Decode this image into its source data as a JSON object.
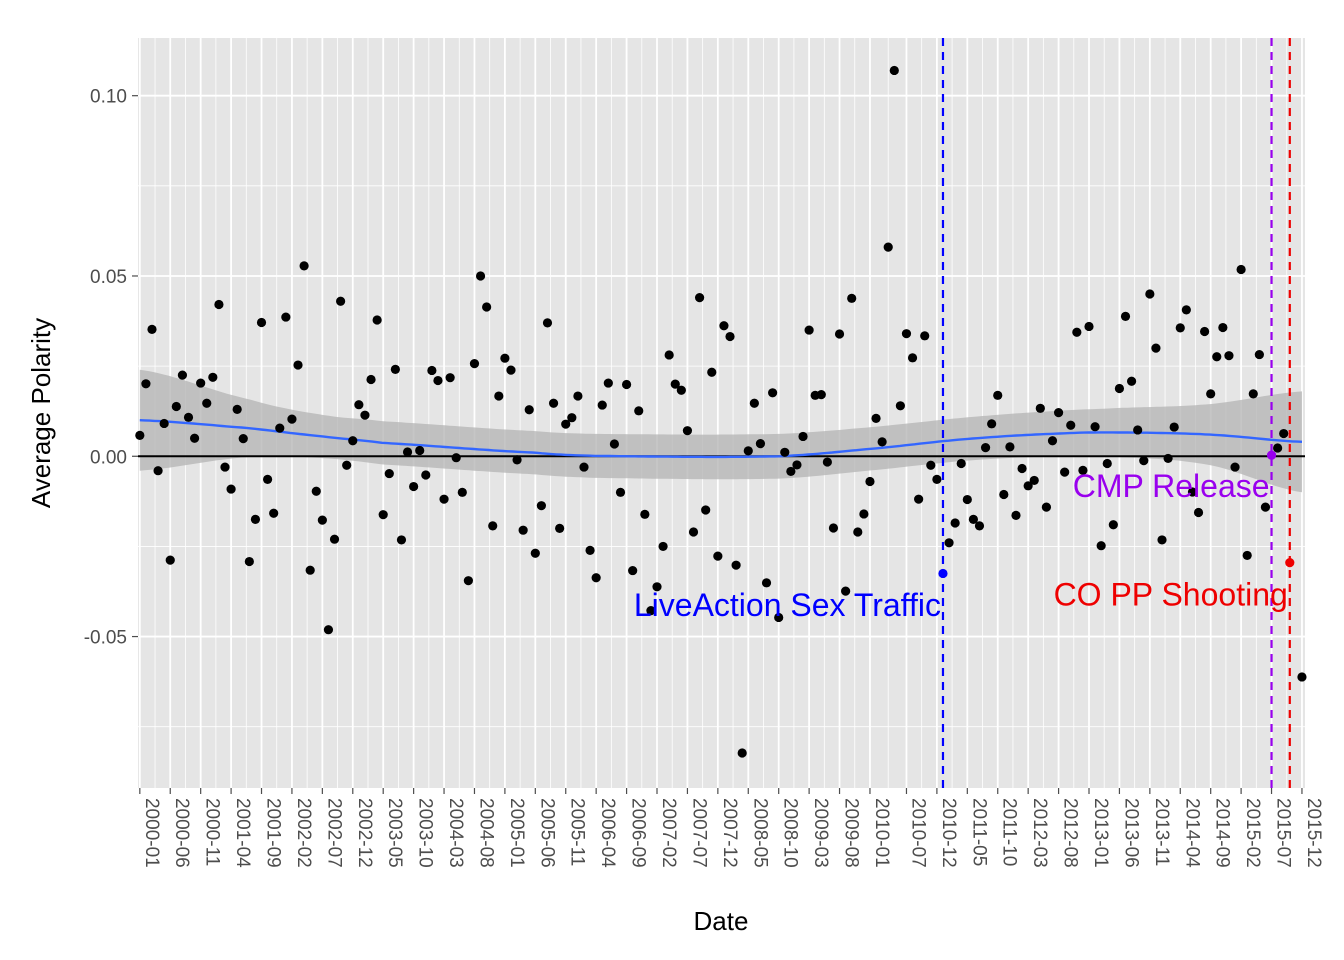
{
  "chart_data": {
    "type": "scatter",
    "title": "",
    "xlabel": "Date",
    "ylabel": "Average Polarity",
    "x_ticks": [
      "2000-01",
      "2000-06",
      "2000-11",
      "2001-04",
      "2001-09",
      "2002-02",
      "2002-07",
      "2002-12",
      "2003-05",
      "2003-10",
      "2004-03",
      "2004-08",
      "2005-01",
      "2005-06",
      "2005-11",
      "2006-04",
      "2006-09",
      "2007-02",
      "2007-07",
      "2007-12",
      "2008-05",
      "2008-10",
      "2009-03",
      "2009-08",
      "2010-01",
      "2010-07",
      "2010-12",
      "2011-05",
      "2011-10",
      "2012-03",
      "2012-08",
      "2013-01",
      "2013-06",
      "2013-11",
      "2014-04",
      "2014-09",
      "2015-02",
      "2015-07",
      "2015-12"
    ],
    "y_ticks": [
      "0.10",
      "0.05",
      "0.00",
      "-0.05"
    ],
    "y_tick_values": [
      0.1,
      0.05,
      0.0,
      -0.05
    ],
    "ylim": [
      -0.092,
      0.116
    ],
    "x_range_months": [
      -0.3,
      191.5
    ],
    "grid": true,
    "colors": {
      "panel": "#e5e5e5",
      "grid": "#ffffff",
      "points": "#000000",
      "smooth": "#3366ff",
      "ribbon": "#b3b3b3",
      "zero_line": "#000000"
    },
    "points": [
      {
        "x": "2000-01",
        "y": 0.0058
      },
      {
        "x": "2000-02",
        "y": 0.0201
      },
      {
        "x": "2000-03",
        "y": 0.0352
      },
      {
        "x": "2000-04",
        "y": -0.004
      },
      {
        "x": "2000-05",
        "y": 0.0091
      },
      {
        "x": "2000-06",
        "y": -0.0288
      },
      {
        "x": "2000-07",
        "y": 0.0138
      },
      {
        "x": "2000-08",
        "y": 0.0225
      },
      {
        "x": "2000-09",
        "y": 0.0108
      },
      {
        "x": "2000-10",
        "y": 0.005
      },
      {
        "x": "2000-11",
        "y": 0.0203
      },
      {
        "x": "2000-12",
        "y": 0.0147
      },
      {
        "x": "2001-01",
        "y": 0.0219
      },
      {
        "x": "2001-02",
        "y": 0.0421
      },
      {
        "x": "2001-03",
        "y": -0.003
      },
      {
        "x": "2001-04",
        "y": -0.0091
      },
      {
        "x": "2001-05",
        "y": 0.013
      },
      {
        "x": "2001-06",
        "y": 0.0049
      },
      {
        "x": "2001-07",
        "y": -0.0292
      },
      {
        "x": "2001-08",
        "y": -0.0175
      },
      {
        "x": "2001-09",
        "y": 0.0371
      },
      {
        "x": "2001-10",
        "y": -0.0064
      },
      {
        "x": "2001-11",
        "y": -0.0158
      },
      {
        "x": "2001-12",
        "y": 0.0078
      },
      {
        "x": "2002-01",
        "y": 0.0386
      },
      {
        "x": "2002-02",
        "y": 0.0103
      },
      {
        "x": "2002-03",
        "y": 0.0253
      },
      {
        "x": "2002-04",
        "y": 0.0528
      },
      {
        "x": "2002-05",
        "y": -0.0316
      },
      {
        "x": "2002-06",
        "y": -0.0097
      },
      {
        "x": "2002-07",
        "y": -0.0177
      },
      {
        "x": "2002-08",
        "y": -0.0481
      },
      {
        "x": "2002-09",
        "y": -0.023
      },
      {
        "x": "2002-10",
        "y": 0.043
      },
      {
        "x": "2002-11",
        "y": -0.0025
      },
      {
        "x": "2002-12",
        "y": 0.0043
      },
      {
        "x": "2003-01",
        "y": 0.0143
      },
      {
        "x": "2003-02",
        "y": 0.0114
      },
      {
        "x": "2003-03",
        "y": 0.0213
      },
      {
        "x": "2003-04",
        "y": 0.0378
      },
      {
        "x": "2003-05",
        "y": -0.0162
      },
      {
        "x": "2003-06",
        "y": -0.0048
      },
      {
        "x": "2003-07",
        "y": 0.0241
      },
      {
        "x": "2003-08",
        "y": -0.0232
      },
      {
        "x": "2003-09",
        "y": 0.0012
      },
      {
        "x": "2003-10",
        "y": -0.0084
      },
      {
        "x": "2003-11",
        "y": 0.0016
      },
      {
        "x": "2003-12",
        "y": -0.0052
      },
      {
        "x": "2004-01",
        "y": 0.0238
      },
      {
        "x": "2004-02",
        "y": 0.021
      },
      {
        "x": "2004-03",
        "y": -0.0119
      },
      {
        "x": "2004-04",
        "y": 0.0218
      },
      {
        "x": "2004-05",
        "y": -0.0004
      },
      {
        "x": "2004-06",
        "y": -0.01
      },
      {
        "x": "2004-07",
        "y": -0.0345
      },
      {
        "x": "2004-08",
        "y": 0.0257
      },
      {
        "x": "2004-09",
        "y": 0.05
      },
      {
        "x": "2004-10",
        "y": 0.0414
      },
      {
        "x": "2004-11",
        "y": -0.0193
      },
      {
        "x": "2004-12",
        "y": 0.0167
      },
      {
        "x": "2005-01",
        "y": 0.0272
      },
      {
        "x": "2005-02",
        "y": 0.0239
      },
      {
        "x": "2005-03",
        "y": -0.001
      },
      {
        "x": "2005-04",
        "y": -0.0205
      },
      {
        "x": "2005-05",
        "y": 0.0129
      },
      {
        "x": "2005-06",
        "y": -0.0269
      },
      {
        "x": "2005-07",
        "y": -0.0137
      },
      {
        "x": "2005-08",
        "y": 0.037
      },
      {
        "x": "2005-09",
        "y": 0.0147
      },
      {
        "x": "2005-10",
        "y": -0.02
      },
      {
        "x": "2005-11",
        "y": 0.0089
      },
      {
        "x": "2005-12",
        "y": 0.0107
      },
      {
        "x": "2006-01",
        "y": 0.0167
      },
      {
        "x": "2006-02",
        "y": -0.003
      },
      {
        "x": "2006-03",
        "y": -0.0261
      },
      {
        "x": "2006-04",
        "y": -0.0337
      },
      {
        "x": "2006-05",
        "y": 0.0142
      },
      {
        "x": "2006-06",
        "y": 0.0203
      },
      {
        "x": "2006-07",
        "y": 0.0034
      },
      {
        "x": "2006-08",
        "y": -0.01
      },
      {
        "x": "2006-09",
        "y": 0.0199
      },
      {
        "x": "2006-10",
        "y": -0.0317
      },
      {
        "x": "2006-11",
        "y": 0.0126
      },
      {
        "x": "2006-12",
        "y": -0.0161
      },
      {
        "x": "2007-01",
        "y": -0.0428
      },
      {
        "x": "2007-02",
        "y": -0.0362
      },
      {
        "x": "2007-03",
        "y": -0.025
      },
      {
        "x": "2007-04",
        "y": 0.0281
      },
      {
        "x": "2007-05",
        "y": 0.02
      },
      {
        "x": "2007-06",
        "y": 0.0183
      },
      {
        "x": "2007-07",
        "y": 0.0071
      },
      {
        "x": "2007-08",
        "y": -0.021
      },
      {
        "x": "2007-09",
        "y": 0.044
      },
      {
        "x": "2007-10",
        "y": -0.0149
      },
      {
        "x": "2007-11",
        "y": 0.0233
      },
      {
        "x": "2007-12",
        "y": -0.0277
      },
      {
        "x": "2008-01",
        "y": 0.0362
      },
      {
        "x": "2008-02",
        "y": 0.0332
      },
      {
        "x": "2008-03",
        "y": -0.0302
      },
      {
        "x": "2008-04",
        "y": -0.0823
      },
      {
        "x": "2008-05",
        "y": 0.0015
      },
      {
        "x": "2008-06",
        "y": 0.0147
      },
      {
        "x": "2008-07",
        "y": 0.0035
      },
      {
        "x": "2008-08",
        "y": -0.0351
      },
      {
        "x": "2008-09",
        "y": 0.0176
      },
      {
        "x": "2008-10",
        "y": -0.0447
      },
      {
        "x": "2008-11",
        "y": 0.0011
      },
      {
        "x": "2008-12",
        "y": -0.0042
      },
      {
        "x": "2009-01",
        "y": -0.0024
      },
      {
        "x": "2009-02",
        "y": 0.0055
      },
      {
        "x": "2009-03",
        "y": 0.035
      },
      {
        "x": "2009-04",
        "y": 0.0169
      },
      {
        "x": "2009-05",
        "y": 0.0171
      },
      {
        "x": "2009-06",
        "y": -0.0016
      },
      {
        "x": "2009-07",
        "y": -0.0199
      },
      {
        "x": "2009-08",
        "y": 0.0339
      },
      {
        "x": "2009-09",
        "y": -0.0374
      },
      {
        "x": "2009-10",
        "y": 0.0438
      },
      {
        "x": "2009-11",
        "y": -0.021
      },
      {
        "x": "2009-12",
        "y": -0.016
      },
      {
        "x": "2010-01",
        "y": -0.007
      },
      {
        "x": "2010-02",
        "y": 0.0105
      },
      {
        "x": "2010-03",
        "y": 0.004
      },
      {
        "x": "2010-04",
        "y": 0.058
      },
      {
        "x": "2010-05",
        "y": 0.107
      },
      {
        "x": "2010-06",
        "y": 0.014
      },
      {
        "x": "2010-07",
        "y": 0.034
      },
      {
        "x": "2010-08",
        "y": 0.0273
      },
      {
        "x": "2010-09",
        "y": -0.0119
      },
      {
        "x": "2010-10",
        "y": 0.0334
      },
      {
        "x": "2010-11",
        "y": -0.0025
      },
      {
        "x": "2010-12",
        "y": -0.0064
      },
      {
        "x": "2011-02",
        "y": -0.024
      },
      {
        "x": "2011-03",
        "y": -0.0185
      },
      {
        "x": "2011-04",
        "y": -0.002
      },
      {
        "x": "2011-05",
        "y": -0.012
      },
      {
        "x": "2011-06",
        "y": -0.0175
      },
      {
        "x": "2011-07",
        "y": -0.0193
      },
      {
        "x": "2011-08",
        "y": 0.0024
      },
      {
        "x": "2011-09",
        "y": 0.009
      },
      {
        "x": "2011-10",
        "y": 0.0169
      },
      {
        "x": "2011-11",
        "y": -0.0106
      },
      {
        "x": "2011-12",
        "y": 0.0026
      },
      {
        "x": "2012-01",
        "y": -0.0164
      },
      {
        "x": "2012-02",
        "y": -0.0034
      },
      {
        "x": "2012-03",
        "y": -0.0082
      },
      {
        "x": "2012-04",
        "y": -0.0067
      },
      {
        "x": "2012-05",
        "y": 0.0133
      },
      {
        "x": "2012-06",
        "y": -0.0141
      },
      {
        "x": "2012-07",
        "y": 0.0043
      },
      {
        "x": "2012-08",
        "y": 0.0121
      },
      {
        "x": "2012-09",
        "y": -0.0044
      },
      {
        "x": "2012-10",
        "y": 0.0086
      },
      {
        "x": "2012-11",
        "y": 0.0344
      },
      {
        "x": "2012-12",
        "y": -0.0039
      },
      {
        "x": "2013-01",
        "y": 0.036
      },
      {
        "x": "2013-02",
        "y": 0.0082
      },
      {
        "x": "2013-03",
        "y": -0.0248
      },
      {
        "x": "2013-04",
        "y": -0.002
      },
      {
        "x": "2013-05",
        "y": -0.019
      },
      {
        "x": "2013-06",
        "y": 0.0188
      },
      {
        "x": "2013-07",
        "y": 0.0388
      },
      {
        "x": "2013-08",
        "y": 0.0208
      },
      {
        "x": "2013-09",
        "y": 0.0073
      },
      {
        "x": "2013-10",
        "y": -0.0012
      },
      {
        "x": "2013-11",
        "y": 0.045
      },
      {
        "x": "2013-12",
        "y": 0.03
      },
      {
        "x": "2014-01",
        "y": -0.0232
      },
      {
        "x": "2014-02",
        "y": -0.0006
      },
      {
        "x": "2014-03",
        "y": 0.0081
      },
      {
        "x": "2014-04",
        "y": 0.0356
      },
      {
        "x": "2014-05",
        "y": 0.0406
      },
      {
        "x": "2014-06",
        "y": -0.0099
      },
      {
        "x": "2014-07",
        "y": -0.0156
      },
      {
        "x": "2014-08",
        "y": 0.0346
      },
      {
        "x": "2014-09",
        "y": 0.0173
      },
      {
        "x": "2014-10",
        "y": 0.0276
      },
      {
        "x": "2014-11",
        "y": 0.0357
      },
      {
        "x": "2014-12",
        "y": 0.0279
      },
      {
        "x": "2015-01",
        "y": -0.003
      },
      {
        "x": "2015-02",
        "y": 0.0518
      },
      {
        "x": "2015-03",
        "y": -0.0275
      },
      {
        "x": "2015-04",
        "y": 0.0173
      },
      {
        "x": "2015-05",
        "y": 0.0282
      },
      {
        "x": "2015-06",
        "y": -0.0141
      },
      {
        "x": "2015-08",
        "y": 0.0023
      },
      {
        "x": "2015-09",
        "y": 0.0063
      },
      {
        "x": "2015-12",
        "y": -0.0612
      }
    ],
    "highlighted_points": [
      {
        "x": "2011-01",
        "y": -0.0325,
        "color": "#0000ff"
      },
      {
        "x": "2015-07",
        "y": 0.0003,
        "color": "#9900ee"
      },
      {
        "x": "2015-10",
        "y": -0.0295,
        "color": "#ee0000"
      }
    ],
    "smooth": [
      {
        "x": "2000-01",
        "y": 0.01,
        "lo": -0.004,
        "hi": 0.024
      },
      {
        "x": "2001-07",
        "y": 0.0078,
        "lo": -0.0002,
        "hi": 0.0158
      },
      {
        "x": "2002-07",
        "y": 0.0055,
        "lo": -0.0005,
        "hi": 0.0115
      },
      {
        "x": "2003-05",
        "y": 0.0037,
        "lo": -0.0023,
        "hi": 0.0097
      },
      {
        "x": "2005-06",
        "y": 0.001,
        "lo": -0.005,
        "hi": 0.007
      },
      {
        "x": "2006-04",
        "y": 0.0001,
        "lo": -0.006,
        "hi": 0.0062
      },
      {
        "x": "2008-10",
        "y": 0.0,
        "lo": -0.0062,
        "hi": 0.0062
      },
      {
        "x": "2010-02",
        "y": 0.0022,
        "lo": -0.0038,
        "hi": 0.0082
      },
      {
        "x": "2011-05",
        "y": 0.0048,
        "lo": -0.0012,
        "hi": 0.0108
      },
      {
        "x": "2012-08",
        "y": 0.0063,
        "lo": 0.0,
        "hi": 0.0126
      },
      {
        "x": "2013-06",
        "y": 0.0066,
        "lo": -0.0002,
        "hi": 0.0134
      },
      {
        "x": "2014-09",
        "y": 0.006,
        "lo": -0.0025,
        "hi": 0.0145
      },
      {
        "x": "2015-12",
        "y": 0.004,
        "lo": -0.01,
        "hi": 0.018
      }
    ],
    "reference_lines": [
      {
        "x": "2011-01",
        "label": "LiveAction Sex Traffic",
        "color": "#0000ff",
        "label_y": -0.041,
        "anchor": "end"
      },
      {
        "x": "2015-07",
        "label": "CMP Release",
        "color": "#9900ee",
        "label_y": -0.008,
        "anchor": "end"
      },
      {
        "x": "2015-10",
        "label": "CO PP Shooting",
        "color": "#ee0000",
        "label_y": -0.038,
        "anchor": "end"
      }
    ]
  }
}
